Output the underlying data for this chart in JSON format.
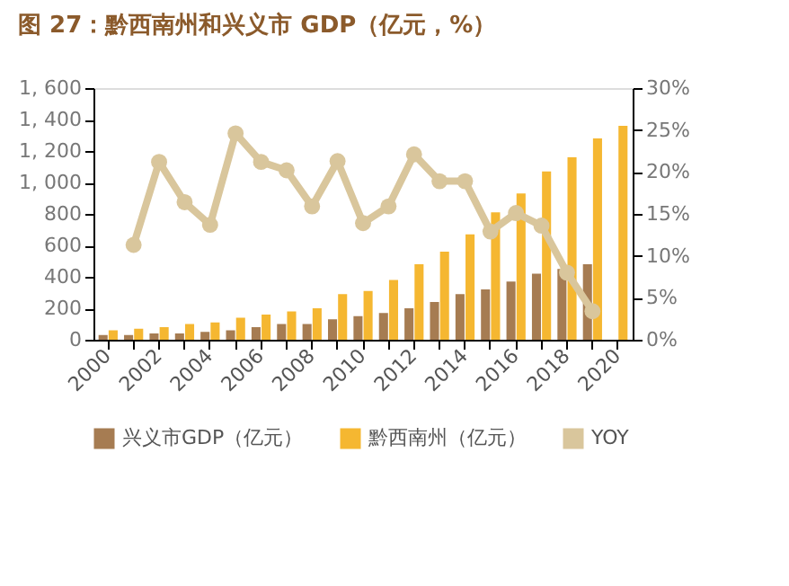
{
  "chart_data": {
    "type": "bar",
    "title": "图 27：黔西南州和兴义市 GDP（亿元，%）",
    "categories": [
      "2000",
      null,
      "2002",
      null,
      "2004",
      null,
      "2006",
      null,
      "2008",
      null,
      "2010",
      null,
      "2012",
      null,
      "2014",
      null,
      "2016",
      null,
      "2018",
      null,
      "2020"
    ],
    "series": [
      {
        "name": "兴义市GDP（亿元）",
        "color": "#a67c52",
        "values": [
          30,
          30,
          40,
          40,
          50,
          60,
          80,
          100,
          100,
          130,
          150,
          170,
          200,
          240,
          290,
          320,
          370,
          420,
          450,
          480,
          null
        ]
      },
      {
        "name": "黔西南州（亿元）",
        "color": "#f5b731",
        "values": [
          60,
          70,
          80,
          100,
          110,
          140,
          160,
          180,
          200,
          290,
          310,
          380,
          480,
          560,
          670,
          810,
          930,
          1070,
          1160,
          1280,
          1360
        ]
      },
      {
        "name": "YOY",
        "type": "line",
        "axis": "y2",
        "color": "#d9c69c",
        "values": [
          null,
          11.3,
          21.2,
          16.4,
          13.7,
          24.6,
          21.2,
          20.2,
          15.9,
          21.3,
          13.9,
          15.9,
          22.1,
          18.9,
          18.9,
          12.9,
          15.1,
          13.6,
          8.0,
          3.4,
          null
        ]
      }
    ],
    "ylim": [
      0,
      1600
    ],
    "yticks": [
      0,
      200,
      400,
      600,
      800,
      {
        "value": 1000,
        "label": "1, 000"
      },
      {
        "value": 1200,
        "label": "1, 200"
      },
      {
        "value": 1400,
        "label": "1, 400"
      },
      {
        "value": 1600,
        "label": "1, 600"
      }
    ],
    "y2lim": [
      0,
      30
    ],
    "y2ticks": [
      {
        "value": 0,
        "label": "0%"
      },
      {
        "value": 5,
        "label": "5%"
      },
      {
        "value": 10,
        "label": "10%"
      },
      {
        "value": 15,
        "label": "15%"
      },
      {
        "value": 20,
        "label": "20%"
      },
      {
        "value": 25,
        "label": "25%"
      },
      {
        "value": 30,
        "label": "30%"
      }
    ],
    "legend": "bottom",
    "grid": false,
    "marker": "circle",
    "line_style": "solid"
  }
}
